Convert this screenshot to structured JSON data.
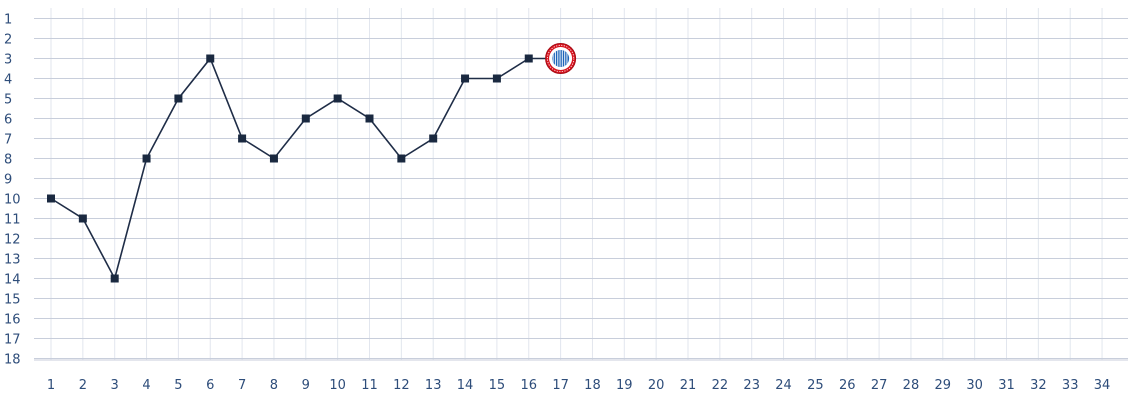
{
  "chart_data": {
    "type": "line",
    "title": "",
    "xlabel": "",
    "ylabel": "",
    "x": [
      1,
      2,
      3,
      4,
      5,
      6,
      7,
      8,
      9,
      10,
      11,
      12,
      13,
      14,
      15,
      16
    ],
    "series": [
      {
        "values": [
          10,
          11,
          14,
          8,
          5,
          3,
          7,
          8,
          6,
          5,
          6,
          8,
          7,
          4,
          4,
          3
        ]
      }
    ],
    "current_marker": {
      "x": 17,
      "y": 3,
      "icon": "club-crest-icon"
    },
    "xlim": [
      1,
      34
    ],
    "ylim": [
      1,
      18
    ],
    "y_inverted": true,
    "x_ticks": [
      "1",
      "2",
      "3",
      "4",
      "5",
      "6",
      "7",
      "8",
      "9",
      "10",
      "11",
      "12",
      "13",
      "14",
      "15",
      "16",
      "17",
      "18",
      "19",
      "20",
      "21",
      "22",
      "23",
      "24",
      "25",
      "26",
      "27",
      "28",
      "29",
      "30",
      "31",
      "32",
      "33",
      "34"
    ],
    "y_ticks": [
      "1",
      "2",
      "3",
      "4",
      "5",
      "6",
      "7",
      "8",
      "9",
      "10",
      "11",
      "12",
      "13",
      "14",
      "15",
      "16",
      "17",
      "18"
    ],
    "grid": true,
    "colors": {
      "line": "#1f2d47",
      "marker": "#1a2940",
      "grid_h": "#c8cedb",
      "grid_v": "#e2e6ee",
      "tick_text": "#2e4d7a",
      "crest_red": "#d7141f",
      "crest_blue": "#1d63b8"
    }
  }
}
